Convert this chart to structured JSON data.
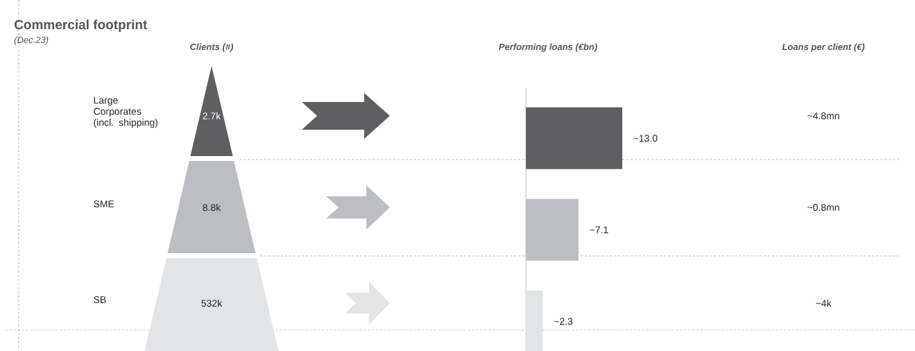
{
  "chart_data": [
    {
      "type": "other",
      "title": "Commercial footprint",
      "subtitle": "(Dec.23)",
      "xlabel": "Clients (#)",
      "categories": [
        "Large Corporates (incl. shipping)",
        "SME",
        "SB"
      ],
      "value_labels": [
        "2.7k",
        "8.8k",
        "532k"
      ],
      "colors": [
        "#5f5f61",
        "#bdbec1",
        "#e3e4e6"
      ]
    },
    {
      "type": "bar",
      "orientation": "horizontal",
      "title": "Performing loans (€bn)",
      "categories": [
        null,
        null,
        null
      ],
      "values": [
        13.0,
        7.1,
        2.3
      ],
      "value_labels": [
        "~13.0",
        "~7.1",
        "~2.3"
      ],
      "colors": [
        "#5f5f61",
        "#bdbec1",
        "#e3e4e6"
      ]
    },
    {
      "type": "other",
      "title": "Loans per client (€)",
      "categories": [
        null,
        null,
        null
      ],
      "value_labels": [
        "~4.8mn",
        "~0.8mn",
        "~4k"
      ]
    }
  ]
}
